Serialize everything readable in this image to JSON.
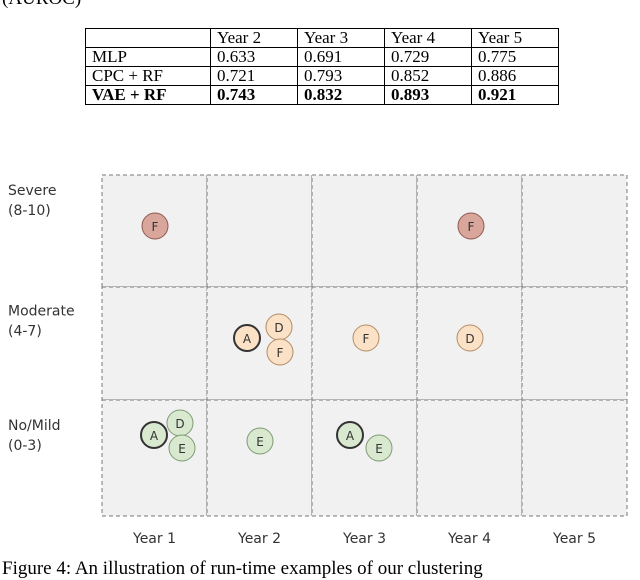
{
  "header": {
    "text": "(AUROC)"
  },
  "table": {
    "columns": [
      "",
      "Year 2",
      "Year 3",
      "Year 4",
      "Year 5"
    ],
    "rows": [
      [
        "MLP",
        "0.633",
        "0.691",
        "0.729",
        "0.775"
      ],
      [
        "CPC + RF",
        "0.721",
        "0.793",
        "0.852",
        "0.886"
      ],
      [
        "VAE + RF",
        "0.743",
        "0.832",
        "0.893",
        "0.921"
      ]
    ]
  },
  "diagram": {
    "row_labels": [
      [
        "Severe",
        "(8-10)"
      ],
      [
        "Moderate",
        "(4-7)"
      ],
      [
        "No/Mild",
        "(0-3)"
      ]
    ],
    "column_labels": [
      "Year 1",
      "Year 2",
      "Year 3",
      "Year 4",
      "Year 5"
    ],
    "nodes": [
      {
        "label": "F"
      },
      {
        "label": "F"
      },
      {
        "label": "A"
      },
      {
        "label": "D"
      },
      {
        "label": "F"
      },
      {
        "label": "F"
      },
      {
        "label": "D"
      },
      {
        "label": "A"
      },
      {
        "label": "D"
      },
      {
        "label": "E"
      },
      {
        "label": "E"
      },
      {
        "label": "A"
      },
      {
        "label": "E"
      }
    ]
  },
  "caption": {
    "text": "Figure 4: An illustration of run-time examples of our clustering"
  }
}
